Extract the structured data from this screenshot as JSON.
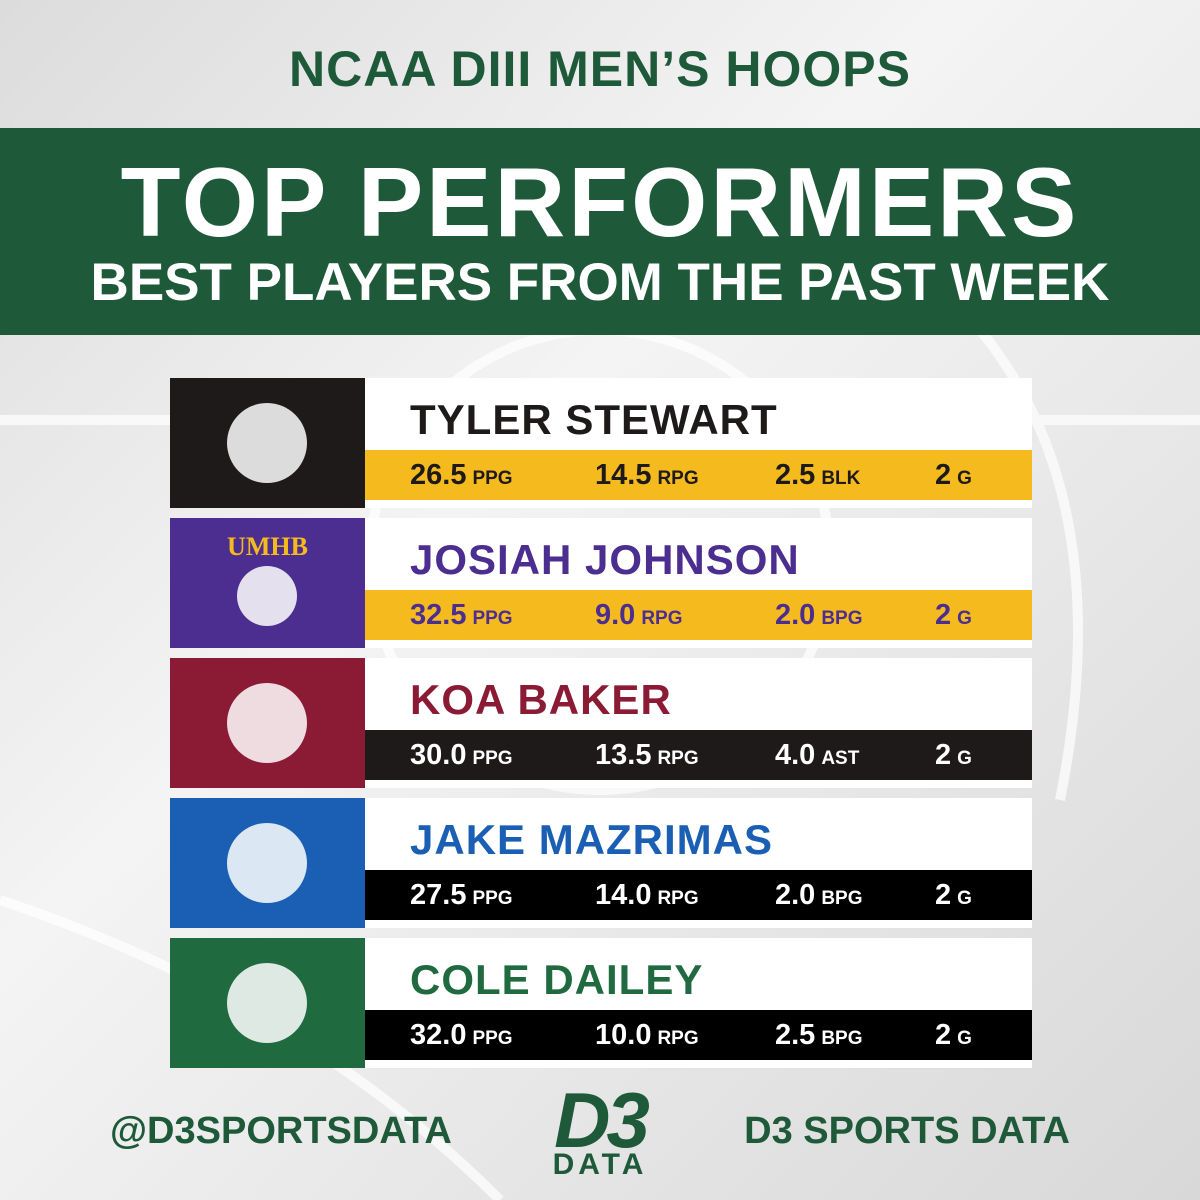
{
  "header": {
    "top": "NCAA DIII MEN’S HOOPS",
    "title": "TOP PERFORMERS",
    "subtitle": "BEST PLAYERS FROM THE PAST WEEK"
  },
  "players": [
    {
      "name": "TYLER STEWART",
      "stats": [
        {
          "value": "26.5",
          "unit": "PPG"
        },
        {
          "value": "14.5",
          "unit": "RPG"
        },
        {
          "value": "2.5",
          "unit": "BLK"
        },
        {
          "value": "2",
          "unit": "G"
        }
      ]
    },
    {
      "name": "JOSIAH JOHNSON",
      "logo_text": "UMHB",
      "stats": [
        {
          "value": "32.5",
          "unit": "PPG"
        },
        {
          "value": "9.0",
          "unit": "RPG"
        },
        {
          "value": "2.0",
          "unit": "BPG"
        },
        {
          "value": "2",
          "unit": "G"
        }
      ]
    },
    {
      "name": "KOA BAKER",
      "stats": [
        {
          "value": "30.0",
          "unit": "PPG"
        },
        {
          "value": "13.5",
          "unit": "RPG"
        },
        {
          "value": "4.0",
          "unit": "AST"
        },
        {
          "value": "2",
          "unit": "G"
        }
      ]
    },
    {
      "name": "JAKE MAZRIMAS",
      "stats": [
        {
          "value": "27.5",
          "unit": "PPG"
        },
        {
          "value": "14.0",
          "unit": "RPG"
        },
        {
          "value": "2.0",
          "unit": "BPG"
        },
        {
          "value": "2",
          "unit": "G"
        }
      ]
    },
    {
      "name": "COLE DAILEY",
      "stats": [
        {
          "value": "32.0",
          "unit": "PPG"
        },
        {
          "value": "10.0",
          "unit": "RPG"
        },
        {
          "value": "2.5",
          "unit": "BPG"
        },
        {
          "value": "2",
          "unit": "G"
        }
      ]
    }
  ],
  "footer": {
    "handle": "@D3SPORTSDATA",
    "logo_top": "D3",
    "logo_bottom": "DATA",
    "brand": "D3 SPORTS DATA"
  }
}
